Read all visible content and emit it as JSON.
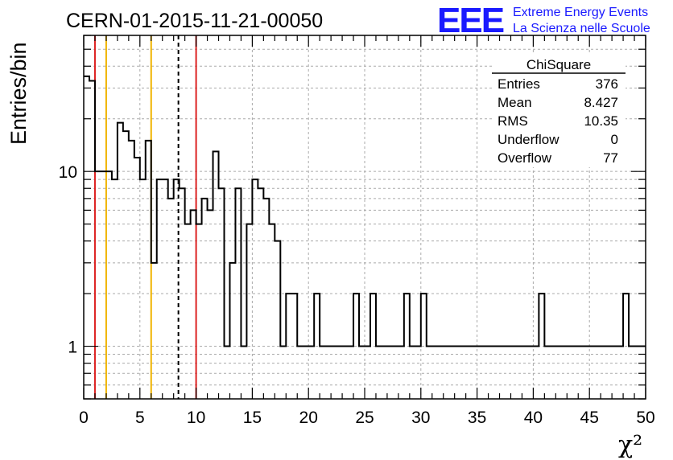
{
  "header": {
    "run_title": "CERN-01-2015-11-21-00050",
    "logo_text": "EEE",
    "logo_line1": "Extreme Energy Events",
    "logo_line2": "La Scienza nelle Scuole"
  },
  "stats_box": {
    "title": "ChiSquare",
    "rows": [
      {
        "label": "Entries",
        "value": "376"
      },
      {
        "label": "Mean",
        "value": "8.427"
      },
      {
        "label": "RMS",
        "value": "10.35"
      },
      {
        "label": "Underflow",
        "value": "0"
      },
      {
        "label": "Overflow",
        "value": "77"
      }
    ]
  },
  "colors": {
    "histogram": "#000000",
    "red_line": "#dd2222",
    "orange_line": "#f0b400",
    "logo": "#1a1aff",
    "grid": "#aaaaaa"
  },
  "chart_data": {
    "type": "bar",
    "histogram_style": "step",
    "title": "CERN-01-2015-11-21-00050",
    "xlabel": "χ²",
    "ylabel": "Entries/bin",
    "xlim": [
      0,
      50
    ],
    "ylim": [
      0.5,
      60
    ],
    "y_scale": "log",
    "grid": true,
    "x_ticks": [
      "0",
      "5",
      "10",
      "15",
      "20",
      "25",
      "30",
      "35",
      "40",
      "45",
      "50"
    ],
    "y_ticks": [
      "1",
      "10"
    ],
    "bin_width": 0.5,
    "bin_start": 0,
    "bin_values": [
      35,
      33,
      10,
      10,
      10,
      9,
      19,
      17,
      15,
      12,
      9,
      15,
      3,
      9,
      9,
      7,
      9,
      8,
      5,
      6,
      5,
      7,
      6,
      13,
      8,
      1,
      3,
      8,
      1,
      5,
      9,
      8,
      7,
      5,
      4,
      1,
      2,
      2,
      1,
      1,
      1,
      2,
      1,
      1,
      1,
      1,
      1,
      1,
      2,
      1,
      1,
      2,
      1,
      1,
      1,
      1,
      1,
      2,
      1,
      1,
      2,
      1,
      1,
      1,
      1,
      1,
      1,
      1,
      1,
      1,
      1,
      1,
      1,
      1,
      1,
      1,
      1,
      1,
      1,
      1,
      1,
      2,
      1,
      1,
      1,
      1,
      1,
      1,
      1,
      1,
      1,
      1,
      1,
      1,
      1,
      1,
      2,
      1,
      1,
      1
    ],
    "vertical_lines": [
      {
        "x": 1,
        "style": "solid",
        "color": "#dd2222"
      },
      {
        "x": 2,
        "style": "solid",
        "color": "#f0b400"
      },
      {
        "x": 6,
        "style": "solid",
        "color": "#f0b400"
      },
      {
        "x": 8.427,
        "style": "dashed",
        "color": "#000000"
      },
      {
        "x": 10,
        "style": "solid",
        "color": "#dd2222"
      }
    ]
  }
}
